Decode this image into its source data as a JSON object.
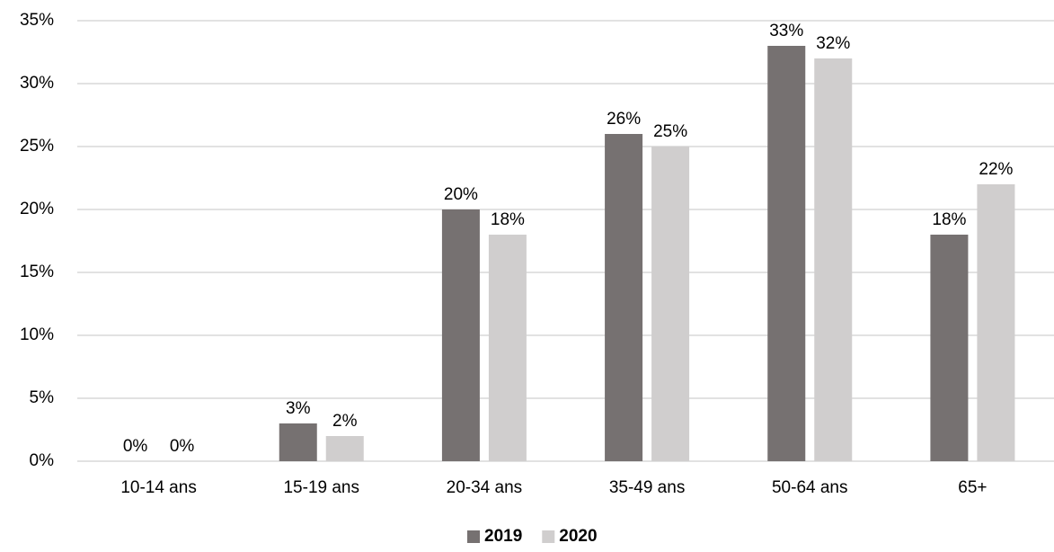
{
  "chart_data": {
    "type": "bar",
    "categories": [
      "10-14 ans",
      "15-19 ans",
      "20-34 ans",
      "35-49 ans",
      "50-64 ans",
      "65+"
    ],
    "series": [
      {
        "name": "2019",
        "color": "#767171",
        "values": [
          0,
          3,
          20,
          26,
          33,
          18
        ],
        "value_labels": [
          "0%",
          "3%",
          "20%",
          "26%",
          "33%",
          "18%"
        ]
      },
      {
        "name": "2020",
        "color": "#d0cece",
        "values": [
          0,
          2,
          18,
          25,
          32,
          22
        ],
        "value_labels": [
          "0%",
          "2%",
          "18%",
          "25%",
          "32%",
          "22%"
        ]
      }
    ],
    "ylim": [
      0,
      35
    ],
    "yticks": [
      {
        "value": 0,
        "label": "0%"
      },
      {
        "value": 5,
        "label": "5%"
      },
      {
        "value": 10,
        "label": "10%"
      },
      {
        "value": 15,
        "label": "15%"
      },
      {
        "value": 20,
        "label": "20%"
      },
      {
        "value": 25,
        "label": "25%"
      },
      {
        "value": 30,
        "label": "30%"
      },
      {
        "value": 35,
        "label": "35%"
      }
    ],
    "grid": true,
    "legend": "bottom"
  }
}
